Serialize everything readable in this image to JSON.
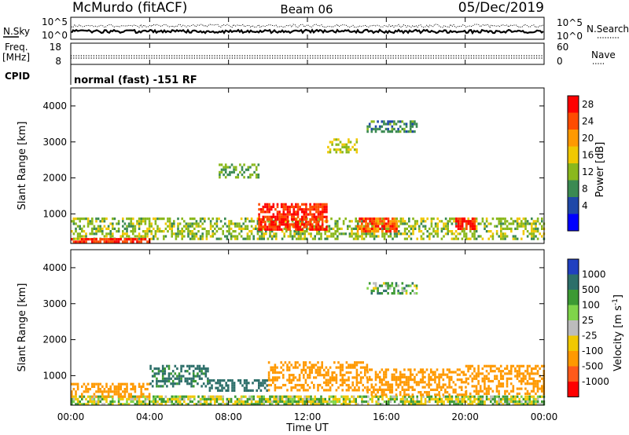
{
  "header": {
    "title": "McMurdo (fitACF)",
    "beam": "Beam 06",
    "date": "05/Dec/2019"
  },
  "noise_panel": {
    "left_label": "N.Sky",
    "left_ticks": [
      "10^5",
      "10^0"
    ],
    "right_ticks": [
      "10^5",
      "10^0"
    ],
    "right_label": "N.Search"
  },
  "freq_panel": {
    "left_label_line1": "Freq.",
    "left_label_line2": "[MHz]",
    "left_ticks": [
      "18",
      "8"
    ],
    "right_ticks": [
      "60",
      "0"
    ],
    "right_label": "Nave"
  },
  "cpid_panel": {
    "label": "CPID",
    "text": "normal (fast) -151 RF"
  },
  "x_axis": {
    "title": "Time UT",
    "ticks": [
      "00:00",
      "04:00",
      "08:00",
      "12:00",
      "16:00",
      "20:00",
      "00:00"
    ]
  },
  "y_axis": {
    "title": "Slant Range [km]",
    "ticks": [
      "1000",
      "2000",
      "3000",
      "4000"
    ]
  },
  "power_colorbar": {
    "title": "Power [dB]",
    "labels": [
      "28",
      "24",
      "20",
      "16",
      "12",
      "8",
      "4"
    ],
    "colors": [
      "#ff0000",
      "#ff4c00",
      "#ff9900",
      "#f0c800",
      "#8ab81c",
      "#3b8a52",
      "#1f48a8",
      "#0000ff"
    ]
  },
  "velocity_colorbar": {
    "title": "Velocity [m s",
    "title_sup": "-1",
    "title_end": "]",
    "labels": [
      "1000",
      "500",
      "100",
      "25",
      "-25",
      "-100",
      "-500",
      "-1000"
    ],
    "colors": [
      "#2040c0",
      "#2d6f6a",
      "#3c9a34",
      "#7fd44a",
      "#bcbcbc",
      "#f0c800",
      "#ff9900",
      "#ff5a1a",
      "#ff0000"
    ]
  },
  "chart_data": [
    {
      "type": "heatmap",
      "title": "Power",
      "xlabel": "Time UT",
      "ylabel": "Slant Range [km]",
      "xlim": [
        0,
        24
      ],
      "ylim": [
        180,
        4500
      ],
      "colorbar_label": "Power [dB]",
      "colorbar_range": [
        0,
        32
      ],
      "features": [
        {
          "name": "near-range band",
          "t": [
            0,
            24
          ],
          "range_km": [
            300,
            900
          ],
          "power_db": 14
        },
        {
          "name": "strong near-range echo",
          "t": [
            0,
            4
          ],
          "range_km": [
            200,
            330
          ],
          "power_db": 28
        },
        {
          "name": "strong echoes",
          "t": [
            9.5,
            13
          ],
          "range_km": [
            600,
            1300
          ],
          "power_db": 28
        },
        {
          "name": "strong echoes",
          "t": [
            14.5,
            16.5
          ],
          "range_km": [
            500,
            900
          ],
          "power_db": 26
        },
        {
          "name": "strong echoes",
          "t": [
            19.5,
            20.5
          ],
          "range_km": [
            600,
            900
          ],
          "power_db": 28
        },
        {
          "name": "far-range arc",
          "t": [
            15,
            17.5
          ],
          "range_km": [
            3300,
            3600
          ],
          "power_db": 10
        },
        {
          "name": "mid-range patch",
          "t": [
            7.5,
            9.5
          ],
          "range_km": [
            2000,
            2400
          ],
          "power_db": 12
        },
        {
          "name": "mid-range patch",
          "t": [
            13,
            14.5
          ],
          "range_km": [
            2700,
            3100
          ],
          "power_db": 16
        }
      ]
    },
    {
      "type": "heatmap",
      "title": "Velocity",
      "xlabel": "Time UT",
      "ylabel": "Slant Range [km]",
      "xlim": [
        0,
        24
      ],
      "ylim": [
        180,
        4500
      ],
      "colorbar_label": "Velocity [m s-1]",
      "colorbar_levels": [
        1000,
        500,
        100,
        25,
        -25,
        -100,
        -500,
        -1000
      ],
      "features": [
        {
          "name": "ground scatter",
          "t": [
            0,
            24
          ],
          "range_km": [
            180,
            450
          ],
          "velocity": 0
        },
        {
          "name": "band",
          "t": [
            0,
            4
          ],
          "range_km": [
            400,
            800
          ],
          "velocity": -200
        },
        {
          "name": "band",
          "t": [
            4,
            7
          ],
          "range_km": [
            700,
            1300
          ],
          "velocity": 150
        },
        {
          "name": "band",
          "t": [
            7,
            10
          ],
          "range_km": [
            600,
            900
          ],
          "velocity": 300
        },
        {
          "name": "band",
          "t": [
            10,
            15
          ],
          "range_km": [
            600,
            1400
          ],
          "velocity": -300
        },
        {
          "name": "band",
          "t": [
            15,
            20
          ],
          "range_km": [
            500,
            1200
          ],
          "velocity": -400
        },
        {
          "name": "band",
          "t": [
            20,
            24
          ],
          "range_km": [
            500,
            1300
          ],
          "velocity": -300
        },
        {
          "name": "far-range arc",
          "t": [
            15,
            17.5
          ],
          "range_km": [
            3300,
            3600
          ],
          "velocity": 50
        }
      ]
    }
  ]
}
